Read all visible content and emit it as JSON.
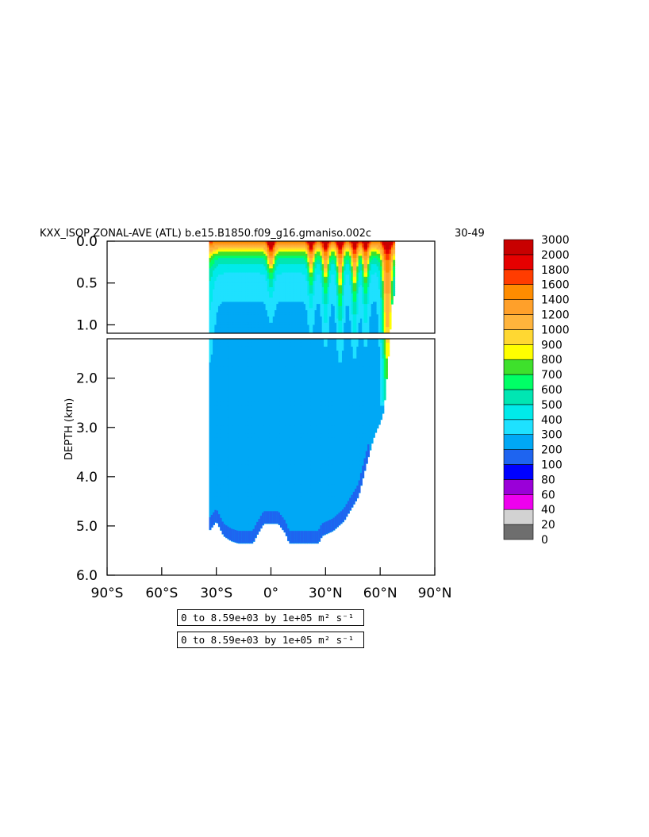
{
  "chart_data": {
    "type": "heatmap",
    "title": "KXX_ISOP ZONAL-AVE (ATL) b.e15.B1850.f09_g16.gmaniso.002c",
    "years_label": "30-49",
    "xlabel": "",
    "ylabel": "DEPTH (km)",
    "x_ticks": [
      "90°S",
      "60°S",
      "30°S",
      "0°",
      "30°N",
      "60°N",
      "90°N"
    ],
    "x_tick_values": [
      -90,
      -60,
      -30,
      0,
      30,
      60,
      90
    ],
    "xlim": [
      -90,
      90
    ],
    "upper_panel": {
      "ylim": [
        0,
        1.1
      ],
      "y_ticks": [
        "0.0",
        "0.5",
        "1.0"
      ],
      "y_tick_values": [
        0,
        0.5,
        1.0
      ]
    },
    "lower_panel": {
      "ylim": [
        1.2,
        6.0
      ],
      "y_ticks": [
        "2.0",
        "3.0",
        "4.0",
        "5.0",
        "6.0"
      ],
      "y_tick_values": [
        2,
        3,
        4,
        5,
        6
      ]
    },
    "grid": false,
    "colorbar": {
      "levels": [
        "0",
        "20",
        "40",
        "60",
        "80",
        "100",
        "200",
        "300",
        "400",
        "500",
        "600",
        "700",
        "800",
        "900",
        "1000",
        "1200",
        "1400",
        "1600",
        "1800",
        "2000",
        "3000"
      ],
      "colors": [
        "#6e6e6e",
        "#d2d2d2",
        "#ee00ee",
        "#9a00d8",
        "#0000ff",
        "#1e64f0",
        "#00a8f5",
        "#1ee1ff",
        "#00eaea",
        "#00e6b2",
        "#00ff66",
        "#3ee02c",
        "#ffff00",
        "#ffd832",
        "#ffb43c",
        "#ffa02a",
        "#ff8c00",
        "#ff3c00",
        "#e60000",
        "#c80000"
      ]
    },
    "field_description": {
      "southern_edge_latitude": -34,
      "northern_edge_latitude": 68,
      "bottom_depth_profile_km": [
        [
          -34,
          5.1
        ],
        [
          -30,
          4.9
        ],
        [
          -26,
          5.2
        ],
        [
          -22,
          5.3
        ],
        [
          -18,
          5.35
        ],
        [
          -10,
          5.35
        ],
        [
          -8,
          5.2
        ],
        [
          -4,
          4.95
        ],
        [
          4,
          4.95
        ],
        [
          8,
          5.15
        ],
        [
          10,
          5.35
        ],
        [
          26,
          5.35
        ],
        [
          28,
          5.2
        ],
        [
          34,
          5.1
        ],
        [
          40,
          4.9
        ],
        [
          44,
          4.65
        ],
        [
          48,
          4.4
        ],
        [
          52,
          3.8
        ],
        [
          56,
          3.25
        ],
        [
          58,
          3.05
        ],
        [
          60,
          2.9
        ],
        [
          62,
          2.65
        ],
        [
          64,
          1.8
        ],
        [
          66,
          0.8
        ],
        [
          68,
          0.6
        ]
      ]
    }
  },
  "info_boxes": [
    {
      "text": "0 to 8.59e+03 by 1e+05 m² s⁻¹"
    },
    {
      "text": "0 to 8.59e+03 by 1e+05 m² s⁻¹"
    }
  ]
}
